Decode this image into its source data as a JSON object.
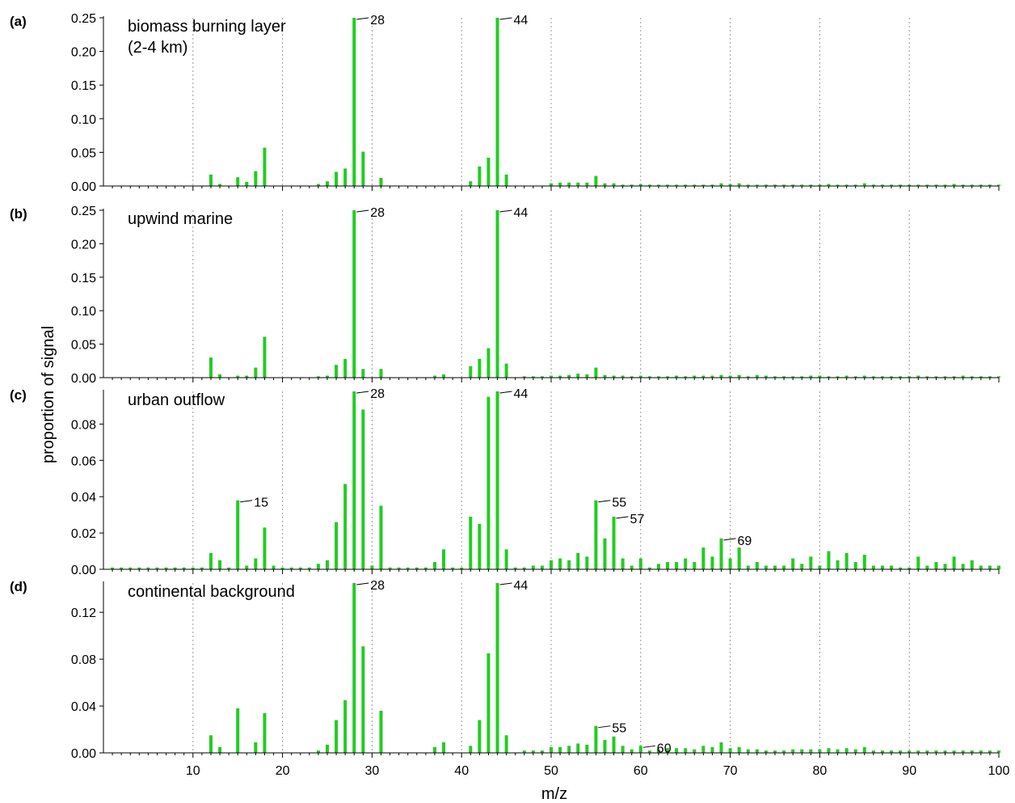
{
  "chart_data": {
    "type": "bar",
    "xlabel": "m/z",
    "ylabel": "proportion of signal",
    "xlim": [
      1,
      100
    ],
    "xticks": [
      10,
      20,
      30,
      40,
      50,
      60,
      70,
      80,
      90,
      100
    ],
    "grid": "vertical dotted",
    "bar_color": "#22cc22",
    "panels": [
      {
        "letter": "(a)",
        "title_lines": [
          "biomass burning layer",
          "(2-4 km)"
        ],
        "ylim": [
          0,
          0.25
        ],
        "yticks": [
          "0.00",
          "0.05",
          "0.10",
          "0.15",
          "0.20",
          "0.25"
        ],
        "series": {
          "mz": [
            12,
            13,
            15,
            16,
            17,
            18,
            24,
            25,
            26,
            27,
            28,
            29,
            31,
            41,
            42,
            43,
            44,
            45,
            50,
            51,
            52,
            53,
            54,
            55,
            56,
            57,
            58,
            59,
            60,
            61,
            62,
            63,
            64,
            65,
            66,
            67,
            68,
            69,
            70,
            71,
            72,
            73,
            74,
            75,
            76,
            77,
            78,
            79,
            80,
            81,
            82,
            83,
            84,
            85,
            86,
            87,
            88,
            89,
            90,
            91,
            92,
            93,
            94,
            95,
            96,
            97,
            98,
            99,
            100
          ],
          "values": [
            0.017,
            0.003,
            0.013,
            0.006,
            0.022,
            0.057,
            0.003,
            0.007,
            0.021,
            0.026,
            0.25,
            0.051,
            0.012,
            0.007,
            0.029,
            0.042,
            0.25,
            0.017,
            0.004,
            0.005,
            0.005,
            0.005,
            0.005,
            0.015,
            0.004,
            0.004,
            0.002,
            0.002,
            0.003,
            0.002,
            0.002,
            0.002,
            0.002,
            0.002,
            0.002,
            0.002,
            0.002,
            0.004,
            0.003,
            0.004,
            0.002,
            0.002,
            0.002,
            0.002,
            0.002,
            0.002,
            0.002,
            0.002,
            0.002,
            0.003,
            0.002,
            0.002,
            0.002,
            0.004,
            0.002,
            0.002,
            0.002,
            0.002,
            0.002,
            0.002,
            0.002,
            0.002,
            0.002,
            0.003,
            0.002,
            0.002,
            0.002,
            0.002,
            0.002
          ]
        },
        "peak_labels": [
          {
            "mz": 28,
            "text": "28"
          },
          {
            "mz": 44,
            "text": "44"
          }
        ]
      },
      {
        "letter": "(b)",
        "title_lines": [
          "upwind marine"
        ],
        "ylim": [
          0,
          0.25
        ],
        "yticks": [
          "0.00",
          "0.05",
          "0.10",
          "0.15",
          "0.20",
          "0.25"
        ],
        "series": {
          "mz": [
            12,
            13,
            15,
            16,
            17,
            18,
            24,
            25,
            26,
            27,
            28,
            29,
            31,
            37,
            38,
            41,
            42,
            43,
            44,
            45,
            47,
            48,
            49,
            50,
            51,
            52,
            53,
            54,
            55,
            56,
            57,
            58,
            59,
            60,
            61,
            62,
            63,
            64,
            65,
            66,
            67,
            68,
            69,
            70,
            71,
            72,
            73,
            74,
            75,
            76,
            77,
            78,
            79,
            80,
            81,
            82,
            83,
            84,
            85,
            86,
            87,
            88,
            89,
            90,
            91,
            92,
            93,
            94,
            95,
            96,
            97,
            98,
            99,
            100
          ],
          "values": [
            0.03,
            0.005,
            0.003,
            0.003,
            0.015,
            0.061,
            0.002,
            0.003,
            0.019,
            0.028,
            0.25,
            0.013,
            0.013,
            0.003,
            0.005,
            0.017,
            0.028,
            0.044,
            0.25,
            0.021,
            0.002,
            0.002,
            0.002,
            0.003,
            0.003,
            0.004,
            0.006,
            0.005,
            0.015,
            0.004,
            0.003,
            0.003,
            0.002,
            0.003,
            0.002,
            0.002,
            0.002,
            0.003,
            0.002,
            0.003,
            0.003,
            0.003,
            0.004,
            0.003,
            0.004,
            0.002,
            0.004,
            0.003,
            0.002,
            0.002,
            0.002,
            0.002,
            0.003,
            0.003,
            0.002,
            0.002,
            0.003,
            0.002,
            0.003,
            0.002,
            0.002,
            0.002,
            0.002,
            0.002,
            0.003,
            0.002,
            0.002,
            0.002,
            0.002,
            0.003,
            0.002,
            0.002,
            0.002,
            0.002
          ]
        },
        "peak_labels": [
          {
            "mz": 28,
            "text": "28"
          },
          {
            "mz": 44,
            "text": "44"
          }
        ]
      },
      {
        "letter": "(c)",
        "title_lines": [
          "urban outflow"
        ],
        "ylim": [
          0,
          0.098
        ],
        "yticks": [
          "0.00",
          "0.02",
          "0.04",
          "0.06",
          "0.08"
        ],
        "series": {
          "mz": [
            1,
            2,
            3,
            4,
            5,
            6,
            7,
            8,
            9,
            10,
            11,
            12,
            13,
            14,
            15,
            16,
            17,
            18,
            19,
            20,
            21,
            22,
            23,
            24,
            25,
            26,
            27,
            28,
            29,
            30,
            31,
            32,
            33,
            34,
            35,
            36,
            37,
            38,
            39,
            40,
            41,
            42,
            43,
            44,
            45,
            46,
            47,
            48,
            49,
            50,
            51,
            52,
            53,
            54,
            55,
            56,
            57,
            58,
            59,
            60,
            61,
            62,
            63,
            64,
            65,
            66,
            67,
            68,
            69,
            70,
            71,
            72,
            73,
            74,
            75,
            76,
            77,
            78,
            79,
            80,
            81,
            82,
            83,
            84,
            85,
            86,
            87,
            88,
            89,
            90,
            91,
            92,
            93,
            94,
            95,
            96,
            97,
            98,
            99,
            100
          ],
          "values": [
            0.001,
            0.001,
            0.001,
            0.001,
            0.001,
            0.001,
            0.001,
            0.001,
            0.001,
            0.001,
            0.001,
            0.009,
            0.005,
            0.001,
            0.038,
            0.002,
            0.006,
            0.023,
            0.002,
            0.001,
            0.001,
            0.001,
            0.001,
            0.003,
            0.005,
            0.026,
            0.047,
            0.098,
            0.088,
            0.002,
            0.035,
            0.001,
            0.001,
            0.001,
            0.001,
            0.001,
            0.004,
            0.011,
            0.001,
            0.001,
            0.029,
            0.025,
            0.095,
            0.098,
            0.011,
            0.001,
            0.001,
            0.002,
            0.002,
            0.005,
            0.006,
            0.005,
            0.009,
            0.007,
            0.038,
            0.017,
            0.029,
            0.006,
            0.002,
            0.006,
            0.001,
            0.003,
            0.004,
            0.004,
            0.006,
            0.004,
            0.012,
            0.007,
            0.017,
            0.006,
            0.012,
            0.002,
            0.004,
            0.002,
            0.002,
            0.002,
            0.006,
            0.003,
            0.007,
            0.002,
            0.01,
            0.005,
            0.009,
            0.004,
            0.008,
            0.002,
            0.002,
            0.002,
            0.001,
            0.001,
            0.007,
            0.002,
            0.004,
            0.003,
            0.007,
            0.003,
            0.005,
            0.002,
            0.002,
            0.002
          ]
        },
        "peak_labels": [
          {
            "mz": 15,
            "text": "15"
          },
          {
            "mz": 28,
            "text": "28"
          },
          {
            "mz": 44,
            "text": "44"
          },
          {
            "mz": 55,
            "text": "55"
          },
          {
            "mz": 57,
            "text": "57"
          },
          {
            "mz": 69,
            "text": "69"
          }
        ]
      },
      {
        "letter": "(d)",
        "title_lines": [
          "continental background"
        ],
        "ylim": [
          0,
          0.145
        ],
        "yticks": [
          "0.00",
          "0.04",
          "0.08",
          "0.12"
        ],
        "series": {
          "mz": [
            12,
            13,
            15,
            17,
            18,
            24,
            25,
            26,
            27,
            28,
            29,
            31,
            37,
            38,
            41,
            42,
            43,
            44,
            45,
            47,
            48,
            49,
            50,
            51,
            52,
            53,
            54,
            55,
            56,
            57,
            58,
            59,
            60,
            61,
            62,
            63,
            64,
            65,
            66,
            67,
            68,
            69,
            70,
            71,
            72,
            73,
            74,
            75,
            76,
            77,
            78,
            79,
            80,
            81,
            82,
            83,
            84,
            85,
            86,
            87,
            88,
            89,
            90,
            91,
            92,
            93,
            94,
            95,
            96,
            97,
            98,
            99,
            100
          ],
          "values": [
            0.015,
            0.005,
            0.038,
            0.009,
            0.034,
            0.002,
            0.007,
            0.028,
            0.045,
            0.145,
            0.091,
            0.036,
            0.005,
            0.009,
            0.006,
            0.028,
            0.085,
            0.145,
            0.015,
            0.002,
            0.002,
            0.002,
            0.005,
            0.005,
            0.006,
            0.008,
            0.007,
            0.023,
            0.011,
            0.014,
            0.006,
            0.003,
            0.006,
            0.002,
            0.003,
            0.004,
            0.004,
            0.004,
            0.003,
            0.006,
            0.005,
            0.009,
            0.004,
            0.005,
            0.003,
            0.003,
            0.002,
            0.002,
            0.002,
            0.003,
            0.003,
            0.003,
            0.003,
            0.004,
            0.003,
            0.004,
            0.003,
            0.005,
            0.002,
            0.002,
            0.002,
            0.002,
            0.002,
            0.002,
            0.002,
            0.002,
            0.002,
            0.002,
            0.002,
            0.002,
            0.002,
            0.002,
            0.002
          ]
        },
        "peak_labels": [
          {
            "mz": 28,
            "text": "28"
          },
          {
            "mz": 44,
            "text": "44"
          },
          {
            "mz": 55,
            "text": "55"
          },
          {
            "mz": 60,
            "text": "60"
          }
        ]
      }
    ]
  }
}
